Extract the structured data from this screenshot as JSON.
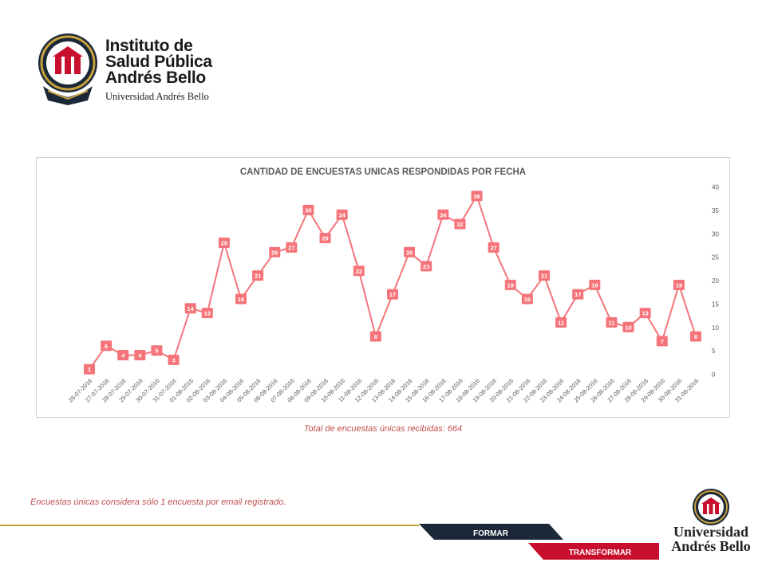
{
  "header": {
    "logo_line1": "Instituto de",
    "logo_line2": "Salud Pública",
    "logo_line3": "Andrés Bello",
    "logo_sub": "Universidad Andrés Bello"
  },
  "chart_data": {
    "type": "line",
    "title": "CANTIDAD DE ENCUESTAS UNICAS RESPONDIDAS POR FECHA",
    "categories": [
      "26-07-2016",
      "27-07-2016",
      "28-07-2016",
      "29-07-2016",
      "30-07-2016",
      "31-07-2016",
      "01-08-2016",
      "02-08-2016",
      "03-08-2016",
      "04-08-2016",
      "05-08-2016",
      "06-08-2016",
      "07-08-2016",
      "08-08-2016",
      "09-08-2016",
      "10-08-2016",
      "11-08-2016",
      "12-08-2016",
      "13-08-2016",
      "14-08-2016",
      "15-08-2016",
      "16-08-2016",
      "17-08-2016",
      "18-08-2016",
      "19-08-2016",
      "20-08-2016",
      "21-08-2016",
      "22-08-2016",
      "23-08-2016",
      "24-08-2016",
      "25-08-2016",
      "26-08-2016",
      "27-08-2016",
      "28-08-2016",
      "29-08-2016",
      "30-08-2016",
      "31-08-2016"
    ],
    "values": [
      1,
      6,
      4,
      4,
      5,
      3,
      14,
      13,
      28,
      16,
      21,
      26,
      27,
      35,
      29,
      34,
      22,
      8,
      17,
      26,
      23,
      34,
      32,
      38,
      27,
      19,
      16,
      21,
      11,
      17,
      19,
      11,
      10,
      13,
      7,
      19,
      8
    ],
    "yticks": [
      0,
      5,
      10,
      15,
      20,
      25,
      30,
      35,
      40
    ],
    "ylim": [
      0,
      40
    ],
    "y_axis_side": "right",
    "grid": false,
    "legend": "none",
    "line_color": "#f4747a",
    "label_box_color": "#f4747a"
  },
  "summary": {
    "total_text": "Total de encuestas únicas recibidas: 664"
  },
  "footnote": {
    "text": "Encuestas únicas considera sólo 1 encuesta por email registrado."
  },
  "footer": {
    "formar": "FORMAR",
    "transformar": "TRANSFORMAR",
    "ub_line1": "Universidad",
    "ub_line2": "Andrés Bello"
  },
  "colors": {
    "brand_red": "#c8102e",
    "navy": "#1b2838",
    "gold": "#c9a13b",
    "accent_text": "#c0504d"
  }
}
